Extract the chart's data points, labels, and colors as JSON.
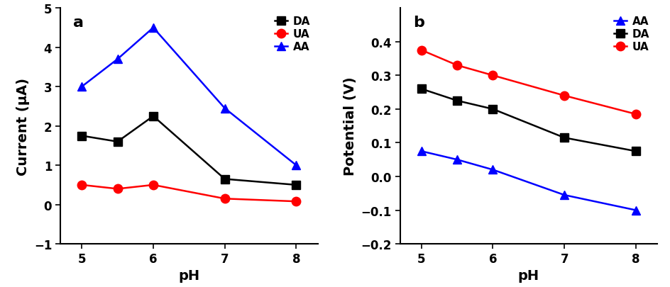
{
  "panel_a": {
    "title": "a",
    "xlabel": "pH",
    "ylabel": "Current (μA)",
    "ylim": [
      -1,
      5
    ],
    "yticks": [
      -1,
      0,
      1,
      2,
      3,
      4,
      5
    ],
    "xlim": [
      4.7,
      8.3
    ],
    "xticks": [
      5,
      6,
      7,
      8
    ],
    "series": [
      {
        "label": "DA",
        "color": "black",
        "marker": "s",
        "x": [
          5,
          5.5,
          6,
          7,
          8
        ],
        "y": [
          1.75,
          1.6,
          2.25,
          0.65,
          0.5
        ]
      },
      {
        "label": "UA",
        "color": "red",
        "marker": "o",
        "x": [
          5,
          5.5,
          6,
          7,
          8
        ],
        "y": [
          0.5,
          0.4,
          0.5,
          0.15,
          0.08
        ]
      },
      {
        "label": "AA",
        "color": "blue",
        "marker": "^",
        "x": [
          5,
          5.5,
          6,
          7,
          8
        ],
        "y": [
          3.0,
          3.7,
          4.5,
          2.45,
          1.0
        ]
      }
    ]
  },
  "panel_b": {
    "title": "b",
    "xlabel": "pH",
    "ylabel": "Potential (V)",
    "ylim": [
      -0.2,
      0.5
    ],
    "yticks": [
      -0.2,
      -0.1,
      0.0,
      0.1,
      0.2,
      0.3,
      0.4
    ],
    "xlim": [
      4.7,
      8.3
    ],
    "xticks": [
      5,
      6,
      7,
      8
    ],
    "series": [
      {
        "label": "AA",
        "color": "blue",
        "marker": "^",
        "x": [
          5,
          5.5,
          6,
          7,
          8
        ],
        "y": [
          0.075,
          0.05,
          0.02,
          -0.055,
          -0.1
        ]
      },
      {
        "label": "DA",
        "color": "black",
        "marker": "s",
        "x": [
          5,
          5.5,
          6,
          7,
          8
        ],
        "y": [
          0.26,
          0.225,
          0.2,
          0.115,
          0.075
        ]
      },
      {
        "label": "UA",
        "color": "red",
        "marker": "o",
        "x": [
          5,
          5.5,
          6,
          7,
          8
        ],
        "y": [
          0.375,
          0.33,
          0.3,
          0.24,
          0.185
        ]
      }
    ]
  },
  "bg_color": "#ffffff",
  "linewidth": 1.8,
  "markersize": 9,
  "tick_labelsize": 12,
  "axis_labelsize": 14,
  "legend_fontsize": 11,
  "title_fontsize": 16,
  "title_fontweight": "bold"
}
